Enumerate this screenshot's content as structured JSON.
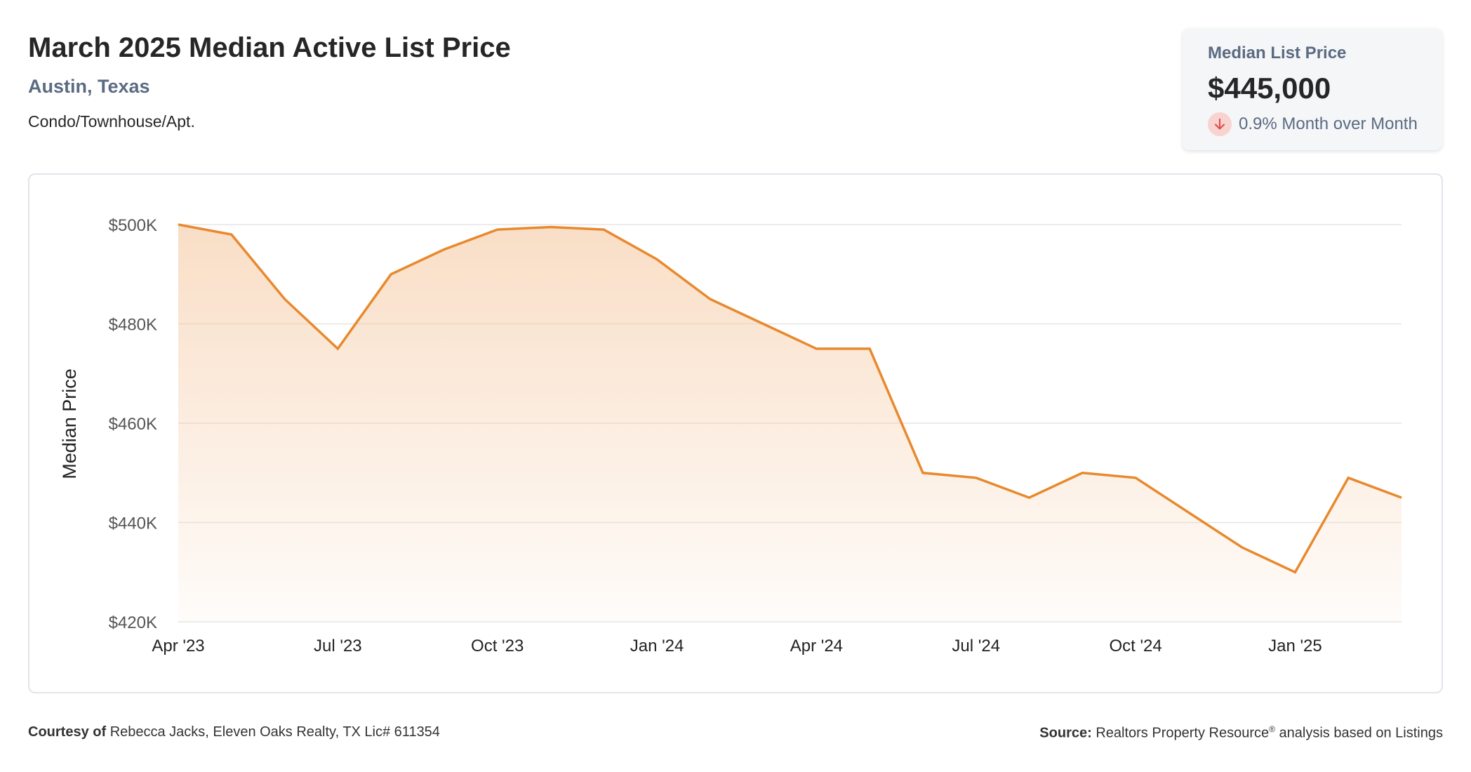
{
  "header": {
    "title": "March 2025 Median Active List Price",
    "location": "Austin, Texas",
    "property_type": "Condo/Townhouse/Apt."
  },
  "kpi": {
    "label": "Median List Price",
    "value": "$445,000",
    "change": "0.9% Month over Month",
    "direction_icon": "arrow-down-icon",
    "direction_color": "#d9534f"
  },
  "footer": {
    "courtesy_label": "Courtesy of",
    "courtesy_text": "Rebecca Jacks, Eleven Oaks Realty, TX Lic# 611354",
    "source_label": "Source:",
    "source_text_pre": "Realtors Property Resource",
    "source_mark": "®",
    "source_text_post": "analysis based on Listings"
  },
  "chart_data": {
    "type": "area",
    "ylabel": "Median Price",
    "xlabel": "",
    "ylim": [
      420000,
      500000
    ],
    "y_ticks": [
      {
        "value": 500000,
        "label": "$500K"
      },
      {
        "value": 480000,
        "label": "$480K"
      },
      {
        "value": 460000,
        "label": "$460K"
      },
      {
        "value": 440000,
        "label": "$440K"
      },
      {
        "value": 420000,
        "label": "$420K"
      }
    ],
    "x_ticks": [
      "Apr '23",
      "Jul '23",
      "Oct '23",
      "Jan '24",
      "Apr '24",
      "Jul '24",
      "Oct '24",
      "Jan '25"
    ],
    "x": [
      "2023-04",
      "2023-05",
      "2023-06",
      "2023-07",
      "2023-08",
      "2023-09",
      "2023-10",
      "2023-11",
      "2023-12",
      "2024-01",
      "2024-02",
      "2024-03",
      "2024-04",
      "2024-05",
      "2024-06",
      "2024-07",
      "2024-08",
      "2024-09",
      "2024-10",
      "2024-11",
      "2024-12",
      "2025-01",
      "2025-02",
      "2025-03"
    ],
    "values": [
      500000,
      498000,
      485000,
      475000,
      490000,
      495000,
      499000,
      499500,
      499000,
      493000,
      485000,
      480000,
      475000,
      475000,
      450000,
      449000,
      445000,
      450000,
      449000,
      442000,
      435000,
      430000,
      449000,
      445000
    ],
    "grid": true,
    "line_color": "#e8892e",
    "fill_color": "#f5c8a0"
  }
}
